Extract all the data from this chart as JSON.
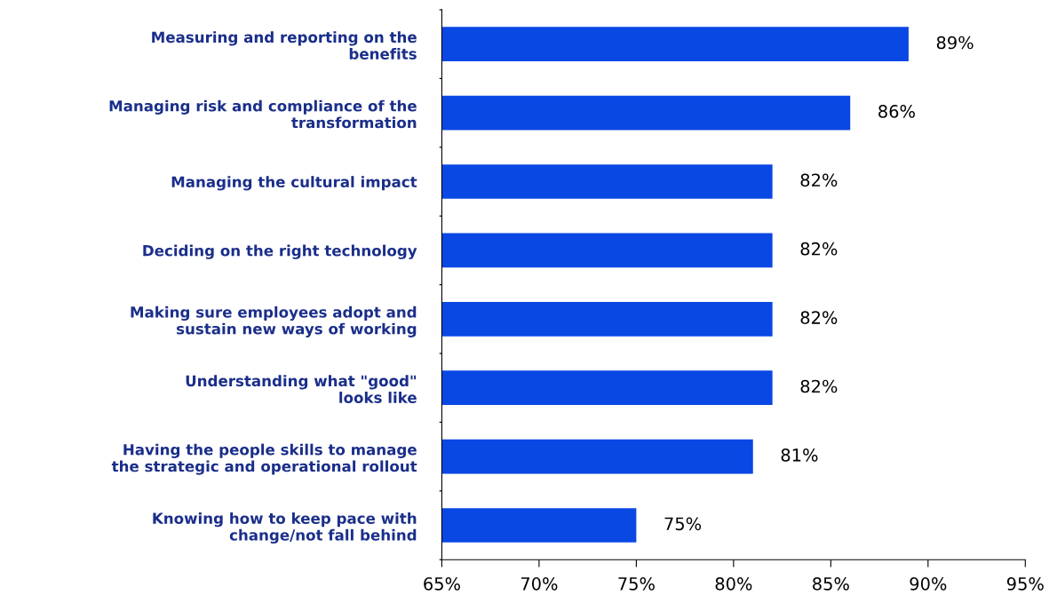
{
  "chart_data": {
    "type": "bar",
    "orientation": "horizontal",
    "categories": [
      "Measuring and reporting on the\nbenefits",
      "Managing risk and compliance of the\ntransformation",
      "Managing the cultural impact",
      "Deciding on the right technology",
      "Making sure employees adopt and\nsustain new ways of working",
      "Understanding what \"good\"\nlooks like",
      "Having the people skills to manage\nthe strategic and operational rollout",
      "Knowing how to keep pace with\nchange/not fall behind"
    ],
    "values": [
      89,
      86,
      82,
      82,
      82,
      82,
      81,
      75
    ],
    "value_labels": [
      "89%",
      "86%",
      "82%",
      "82%",
      "82%",
      "82%",
      "81%",
      "75%"
    ],
    "color": "#0a48e4",
    "xlim": [
      65,
      95
    ],
    "xticks": [
      {
        "value": 65,
        "label": "65%"
      },
      {
        "value": 70,
        "label": "70%"
      },
      {
        "value": 75,
        "label": "75%"
      },
      {
        "value": 80,
        "label": "80%"
      },
      {
        "value": 85,
        "label": "85%"
      },
      {
        "value": 90,
        "label": "90%"
      },
      {
        "value": 95,
        "label": "95%"
      }
    ],
    "grid": false,
    "legend": false
  }
}
